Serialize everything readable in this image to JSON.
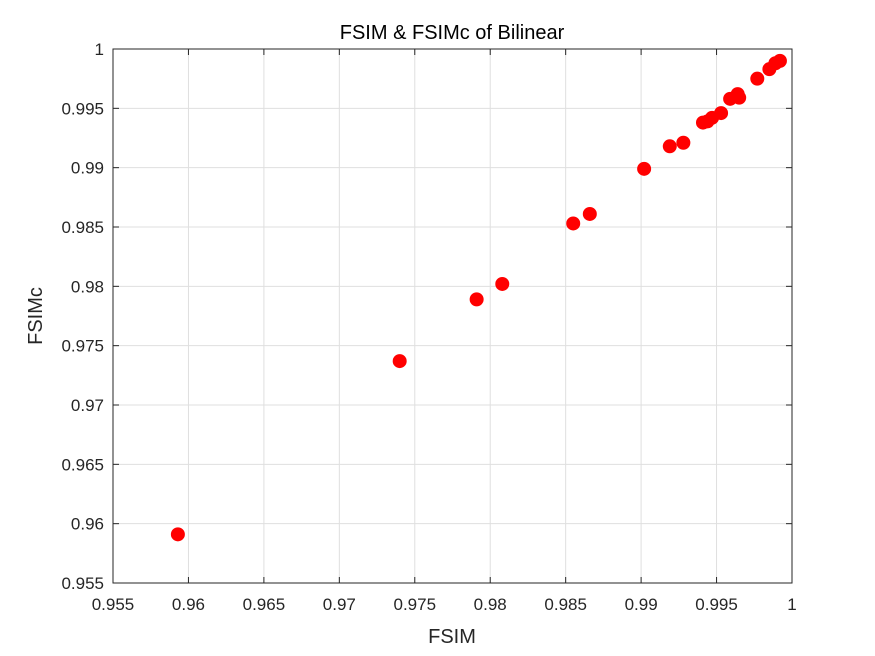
{
  "chart_data": {
    "type": "scatter",
    "title": "FSIM & FSIMc of Bilinear",
    "xlabel": "FSIM",
    "ylabel": "FSIMc",
    "xlim": [
      0.955,
      1
    ],
    "ylim": [
      0.955,
      1
    ],
    "xticks": [
      "0.955",
      "0.96",
      "0.965",
      "0.97",
      "0.975",
      "0.98",
      "0.985",
      "0.99",
      "0.995",
      "1"
    ],
    "yticks": [
      "0.955",
      "0.96",
      "0.965",
      "0.97",
      "0.975",
      "0.98",
      "0.985",
      "0.99",
      "0.995",
      "1"
    ],
    "grid": true,
    "marker_color": "#ff0000",
    "series": [
      {
        "points": [
          [
            0.9593,
            0.9591
          ],
          [
            0.974,
            0.9737
          ],
          [
            0.9791,
            0.9789
          ],
          [
            0.9808,
            0.9802
          ],
          [
            0.9855,
            0.9853
          ],
          [
            0.9866,
            0.9861
          ],
          [
            0.9902,
            0.9899
          ],
          [
            0.9919,
            0.9918
          ],
          [
            0.9928,
            0.9921
          ],
          [
            0.9941,
            0.9938
          ],
          [
            0.9944,
            0.9939
          ],
          [
            0.9947,
            0.9942
          ],
          [
            0.9953,
            0.9946
          ],
          [
            0.9959,
            0.9958
          ],
          [
            0.9964,
            0.9962
          ],
          [
            0.9965,
            0.9959
          ],
          [
            0.9977,
            0.9975
          ],
          [
            0.9985,
            0.9983
          ],
          [
            0.9989,
            0.9988
          ],
          [
            0.9992,
            0.999
          ]
        ]
      }
    ]
  }
}
